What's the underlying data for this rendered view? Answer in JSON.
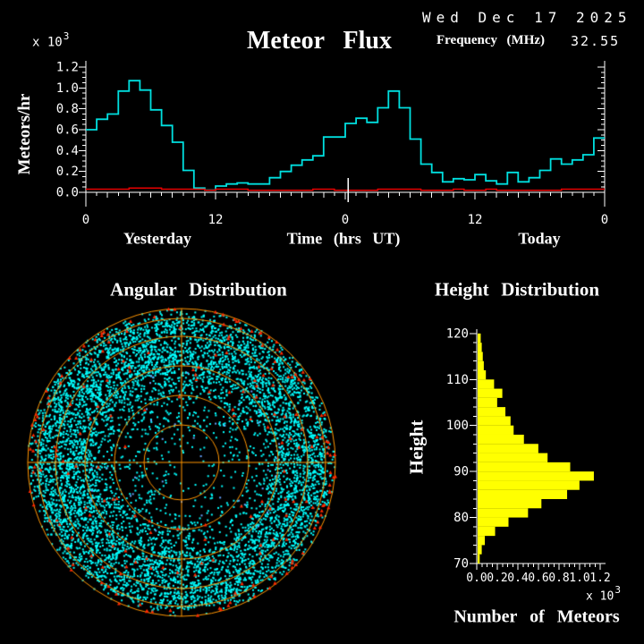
{
  "header": {
    "date": "Wed Dec 17 2025",
    "frequency_label": "Frequency (MHz)",
    "frequency_value": "32.55"
  },
  "flux": {
    "title": "Meteor Flux",
    "ylabel": "Meteors/hr",
    "y_scale_base": "x 10",
    "y_scale_exp": "3",
    "xlabel": "Time (hrs UT)",
    "yesterday_label": "Yesterday",
    "today_label": "Today"
  },
  "angular": {
    "title": "Angular Distribution"
  },
  "height": {
    "title": "Height Distribution",
    "ylabel": "Height",
    "xlabel": "Number of Meteors",
    "x_scale_base": "x 10",
    "x_scale_exp": "3"
  },
  "chart_data": [
    {
      "name": "meteor_flux",
      "type": "line",
      "style": "step",
      "title": "Meteor Flux",
      "xlabel": "Time (hrs UT)",
      "ylabel": "Meteors/hr",
      "y_multiplier": "x10^3",
      "ylim": [
        0,
        1.2
      ],
      "y_major_ticks": [
        0.0,
        0.2,
        0.4,
        0.6,
        0.8,
        1.0,
        1.2
      ],
      "y_minor_step": 0.05,
      "x_hours_total": 48,
      "x_tick_labels": [
        {
          "hour": 0,
          "label": "0"
        },
        {
          "hour": 12,
          "label": "12"
        },
        {
          "hour": 24,
          "label": "0"
        },
        {
          "hour": 36,
          "label": "12"
        },
        {
          "hour": 48,
          "label": "0"
        }
      ],
      "x_section_labels": [
        "Yesterday",
        "Time (hrs UT)",
        "Today"
      ],
      "current_time_marker_hour": 24.25,
      "series": [
        {
          "name": "meteor-flux",
          "color": "#00e0e0",
          "hourly_values_x1000": [
            0.6,
            0.7,
            0.75,
            0.97,
            1.07,
            0.98,
            0.79,
            0.64,
            0.48,
            0.21,
            0.04,
            0.02,
            0.06,
            0.08,
            0.09,
            0.08,
            0.08,
            0.14,
            0.2,
            0.26,
            0.31,
            0.35,
            0.53,
            0.53,
            0.66,
            0.71,
            0.67,
            0.81,
            0.97,
            0.81,
            0.51,
            0.27,
            0.19,
            0.1,
            0.13,
            0.12,
            0.17,
            0.11,
            0.08,
            0.19,
            0.1,
            0.14,
            0.21,
            0.32,
            0.27,
            0.31,
            0.36,
            0.52
          ]
        },
        {
          "name": "background-noise",
          "color": "#e60000",
          "hourly_values_x1000": [
            0.03,
            0.03,
            0.03,
            0.03,
            0.04,
            0.04,
            0.04,
            0.03,
            0.03,
            0.03,
            0.03,
            0.02,
            0.03,
            0.03,
            0.03,
            0.02,
            0.02,
            0.02,
            0.02,
            0.02,
            0.02,
            0.03,
            0.03,
            0.02,
            0.02,
            0.02,
            0.02,
            0.03,
            0.03,
            0.03,
            0.03,
            0.02,
            0.02,
            0.02,
            0.03,
            0.02,
            0.02,
            0.03,
            0.02,
            0.02,
            0.02,
            0.02,
            0.02,
            0.02,
            0.03,
            0.03,
            0.03,
            0.03
          ]
        }
      ]
    },
    {
      "name": "angular_distribution",
      "type": "scatter",
      "title": "Angular Distribution",
      "projection": "all-sky-polar",
      "grid_color": "#ff9500",
      "grid_ring_radius_fractions": [
        0.244,
        0.436,
        0.628,
        0.82,
        0.936,
        1.0
      ],
      "crosshair": true,
      "dots": {
        "cyan": {
          "color": "#00ffff",
          "count": 7000
        },
        "red": {
          "color": "#ff2a00",
          "count_scattered": 130,
          "count_rim": 80
        },
        "blue": {
          "color": "#66a3ff",
          "count": 40
        }
      },
      "seed": 20251217
    },
    {
      "name": "height_distribution",
      "type": "bar",
      "orientation": "horizontal",
      "title": "Height Distribution",
      "xlabel": "Number of Meteors",
      "ylabel": "Height",
      "x_multiplier": "x10^3",
      "xlim": [
        0,
        1.2
      ],
      "x_tick_labels": [
        "0.0",
        "0.2",
        "0.4",
        "0.6",
        "0.8",
        "1.0",
        "1.2"
      ],
      "x_minor_step": 0.05,
      "ylim": [
        70,
        120
      ],
      "y_tick_labels": [
        "120",
        "110",
        "100",
        "90",
        "80",
        "70"
      ],
      "bin_km": 2,
      "bar_color": "#ffff00",
      "bin_upper_edges_km": [
        120,
        118,
        116,
        114,
        112,
        110,
        108,
        106,
        104,
        102,
        100,
        98,
        96,
        94,
        92,
        90,
        88,
        86,
        84,
        82,
        80,
        78,
        76,
        74,
        72
      ],
      "values_x1000": [
        0.03,
        0.04,
        0.05,
        0.06,
        0.08,
        0.16,
        0.24,
        0.19,
        0.27,
        0.32,
        0.35,
        0.45,
        0.59,
        0.68,
        0.9,
        1.13,
        0.99,
        0.87,
        0.62,
        0.49,
        0.3,
        0.17,
        0.07,
        0.04,
        0.02
      ]
    }
  ]
}
